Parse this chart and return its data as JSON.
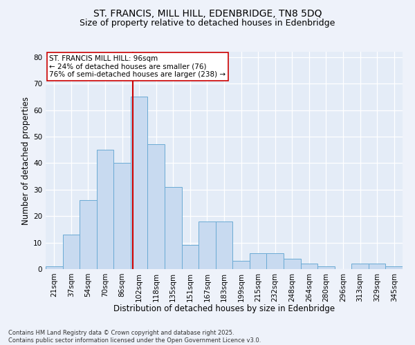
{
  "title_line1": "ST. FRANCIS, MILL HILL, EDENBRIDGE, TN8 5DQ",
  "title_line2": "Size of property relative to detached houses in Edenbridge",
  "xlabel": "Distribution of detached houses by size in Edenbridge",
  "ylabel": "Number of detached properties",
  "categories": [
    "21sqm",
    "37sqm",
    "54sqm",
    "70sqm",
    "86sqm",
    "102sqm",
    "118sqm",
    "135sqm",
    "151sqm",
    "167sqm",
    "183sqm",
    "199sqm",
    "215sqm",
    "232sqm",
    "248sqm",
    "264sqm",
    "280sqm",
    "296sqm",
    "313sqm",
    "329sqm",
    "345sqm"
  ],
  "values": [
    1,
    13,
    26,
    45,
    40,
    65,
    47,
    31,
    9,
    18,
    18,
    3,
    6,
    6,
    4,
    2,
    1,
    0,
    2,
    2,
    1
  ],
  "bar_color": "#c8daf0",
  "bar_edge_color": "#6aaad4",
  "vertical_line_color": "#cc0000",
  "annotation_text": "ST. FRANCIS MILL HILL: 96sqm\n← 24% of detached houses are smaller (76)\n76% of semi-detached houses are larger (238) →",
  "annotation_box_color": "#ffffff",
  "annotation_box_edge": "#cc0000",
  "ylim": [
    0,
    82
  ],
  "yticks": [
    0,
    10,
    20,
    30,
    40,
    50,
    60,
    70,
    80
  ],
  "footer": "Contains HM Land Registry data © Crown copyright and database right 2025.\nContains public sector information licensed under the Open Government Licence v3.0.",
  "bg_color": "#eef2fa",
  "plot_bg_color": "#e4ecf7",
  "grid_color": "#ffffff",
  "title_fontsize": 10,
  "subtitle_fontsize": 9,
  "tick_fontsize": 7.5,
  "label_fontsize": 8.5,
  "footer_fontsize": 6,
  "annotation_fontsize": 7.5
}
